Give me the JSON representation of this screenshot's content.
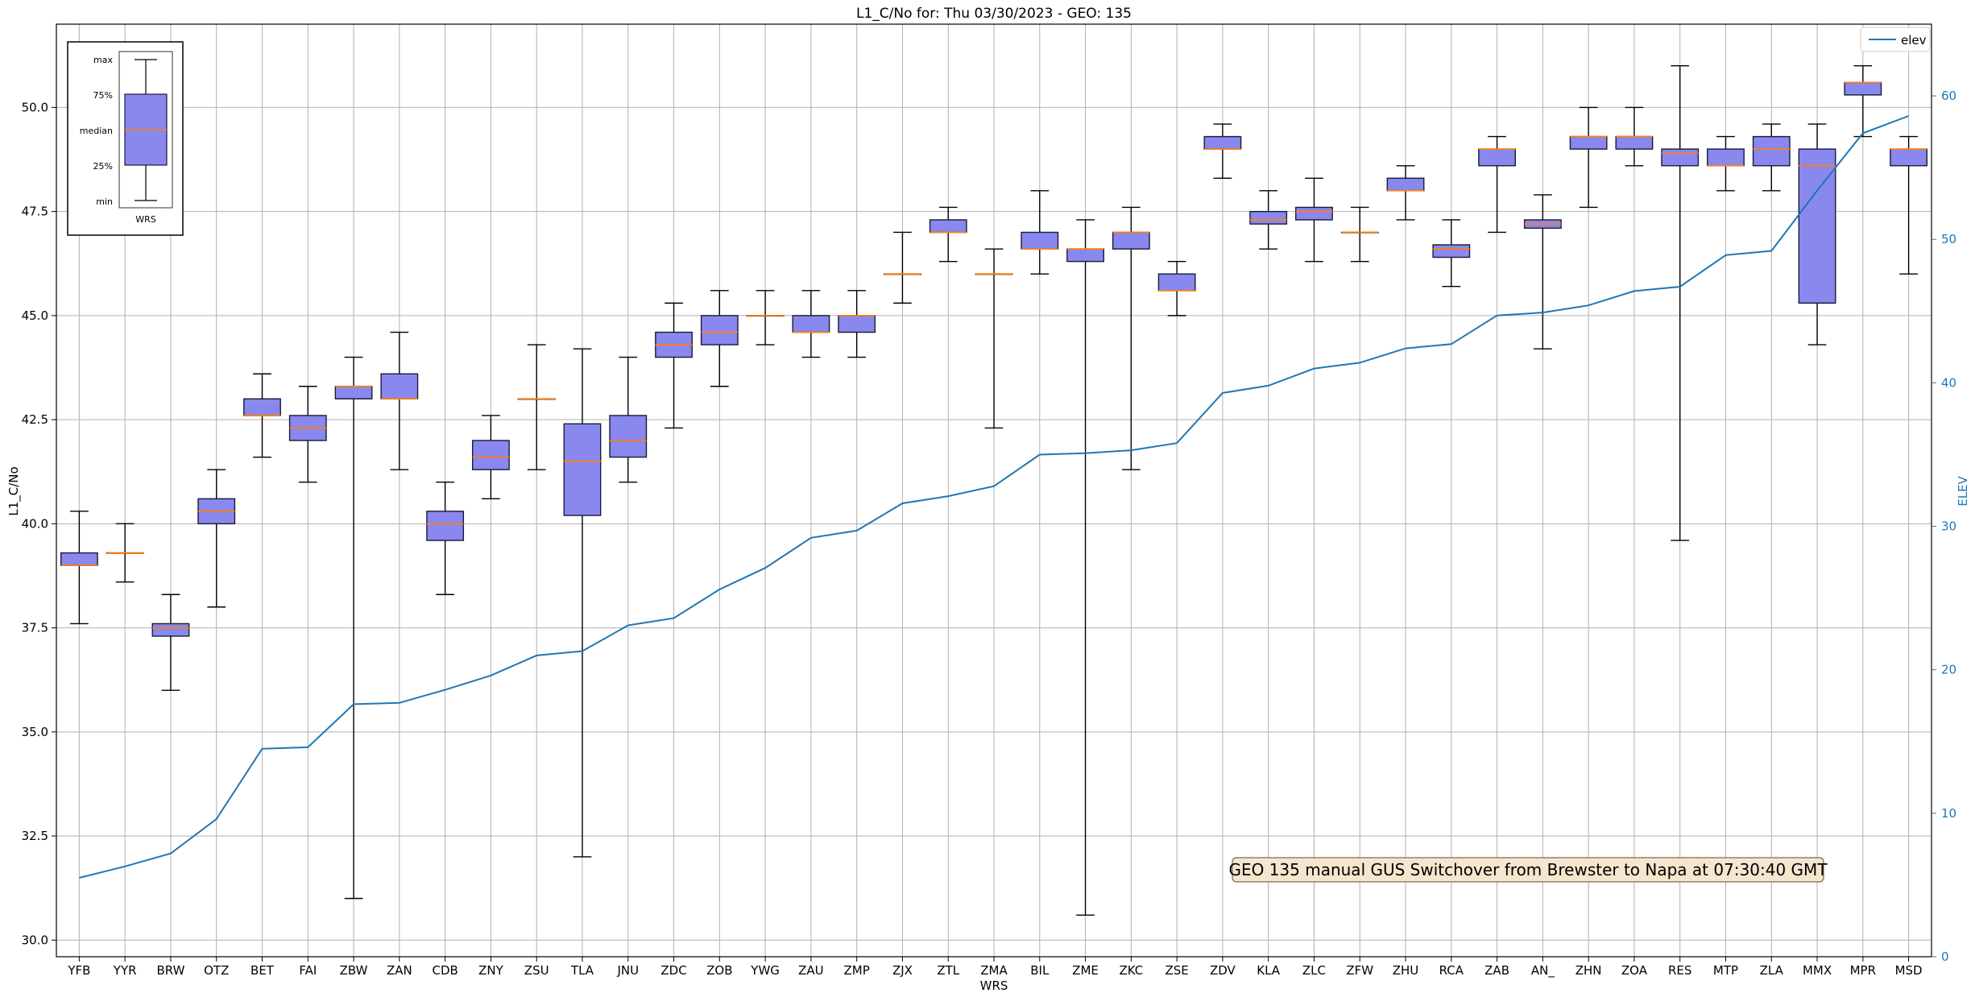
{
  "chart_data": {
    "type": "box",
    "title": "L1_C/No for: Thu 03/30/2023 - GEO: 135",
    "xlabel": "WRS",
    "ylabel": "L1_C/No",
    "y2label": "ELEV",
    "ylim": [
      29.6,
      52.0
    ],
    "y2lim": [
      0,
      65
    ],
    "yticks": [
      "30.0",
      "32.5",
      "35.0",
      "37.5",
      "40.0",
      "42.5",
      "45.0",
      "47.5",
      "50.0"
    ],
    "y2ticks": [
      "0",
      "10",
      "20",
      "30",
      "40",
      "50",
      "60"
    ],
    "grid": true,
    "legend": {
      "position": "top-right",
      "entries": [
        "elev"
      ]
    },
    "annotation": "GEO 135 manual GUS Switchover from Brewster to Napa at 07:30:40 GMT",
    "colors": {
      "box_fill": "#8888ee",
      "box_edge": "#1a1a3a",
      "median": "#ff7f0e",
      "elev_line": "#1f77b4",
      "whisker": "#000000",
      "grid": "#b0b0b0"
    },
    "categories": [
      "YFB",
      "YYR",
      "BRW",
      "OTZ",
      "BET",
      "FAI",
      "ZBW",
      "ZAN",
      "CDB",
      "ZNY",
      "ZSU",
      "TLA",
      "JNU",
      "ZDC",
      "ZOB",
      "YWG",
      "ZAU",
      "ZMP",
      "ZJX",
      "ZTL",
      "ZMA",
      "BIL",
      "ZME",
      "ZKC",
      "ZSE",
      "ZDV",
      "KLA",
      "ZLC",
      "ZFW",
      "ZHU",
      "RCA",
      "ZAB",
      "AN_",
      "ZHN",
      "ZOA",
      "RES",
      "MTP",
      "ZLA",
      "MMX",
      "MPR",
      "MSD"
    ],
    "boxes": [
      {
        "min": 37.6,
        "q1": 39.0,
        "median": 39.0,
        "q3": 39.3,
        "max": 40.3
      },
      {
        "min": 38.6,
        "q1": 39.3,
        "median": 39.3,
        "q3": 39.3,
        "max": 40.0
      },
      {
        "min": 36.0,
        "q1": 37.3,
        "median": 37.5,
        "q3": 37.6,
        "max": 38.3
      },
      {
        "min": 38.0,
        "q1": 40.0,
        "median": 40.3,
        "q3": 40.6,
        "max": 41.3
      },
      {
        "min": 41.6,
        "q1": 42.6,
        "median": 42.6,
        "q3": 43.0,
        "max": 43.6
      },
      {
        "min": 41.0,
        "q1": 42.0,
        "median": 42.3,
        "q3": 42.6,
        "max": 43.3
      },
      {
        "min": 31.0,
        "q1": 43.0,
        "median": 43.3,
        "q3": 43.3,
        "max": 44.0
      },
      {
        "min": 41.3,
        "q1": 43.0,
        "median": 43.0,
        "q3": 43.6,
        "max": 44.6
      },
      {
        "min": 38.3,
        "q1": 39.6,
        "median": 40.0,
        "q3": 40.3,
        "max": 41.0
      },
      {
        "min": 40.6,
        "q1": 41.3,
        "median": 41.6,
        "q3": 42.0,
        "max": 42.6
      },
      {
        "min": 41.3,
        "q1": 43.0,
        "median": 43.0,
        "q3": 43.0,
        "max": 44.3
      },
      {
        "min": 32.0,
        "q1": 40.2,
        "median": 41.5,
        "q3": 42.4,
        "max": 44.2
      },
      {
        "min": 41.0,
        "q1": 41.6,
        "median": 42.0,
        "q3": 42.6,
        "max": 44.0
      },
      {
        "min": 42.3,
        "q1": 44.0,
        "median": 44.3,
        "q3": 44.6,
        "max": 45.3
      },
      {
        "min": 43.3,
        "q1": 44.3,
        "median": 44.6,
        "q3": 45.0,
        "max": 45.6
      },
      {
        "min": 44.3,
        "q1": 45.0,
        "median": 45.0,
        "q3": 45.0,
        "max": 45.6
      },
      {
        "min": 44.0,
        "q1": 44.6,
        "median": 44.6,
        "q3": 45.0,
        "max": 45.6
      },
      {
        "min": 44.0,
        "q1": 44.6,
        "median": 45.0,
        "q3": 45.0,
        "max": 45.6
      },
      {
        "min": 45.3,
        "q1": 46.0,
        "median": 46.0,
        "q3": 46.0,
        "max": 47.0
      },
      {
        "min": 46.3,
        "q1": 47.0,
        "median": 47.0,
        "q3": 47.3,
        "max": 47.6
      },
      {
        "min": 42.3,
        "q1": 46.0,
        "median": 46.0,
        "q3": 46.0,
        "max": 46.6
      },
      {
        "min": 46.0,
        "q1": 46.6,
        "median": 46.6,
        "q3": 47.0,
        "max": 48.0
      },
      {
        "min": 30.6,
        "q1": 46.3,
        "median": 46.6,
        "q3": 46.6,
        "max": 47.3
      },
      {
        "min": 41.3,
        "q1": 46.6,
        "median": 47.0,
        "q3": 47.0,
        "max": 47.6
      },
      {
        "min": 45.0,
        "q1": 45.6,
        "median": 45.6,
        "q3": 46.0,
        "max": 46.3
      },
      {
        "min": 48.3,
        "q1": 49.0,
        "median": 49.0,
        "q3": 49.3,
        "max": 49.6
      },
      {
        "min": 46.6,
        "q1": 47.2,
        "median": 47.3,
        "q3": 47.5,
        "max": 48.0
      },
      {
        "min": 46.3,
        "q1": 47.3,
        "median": 47.5,
        "q3": 47.6,
        "max": 48.3
      },
      {
        "min": 46.3,
        "q1": 47.0,
        "median": 47.0,
        "q3": 47.0,
        "max": 47.6
      },
      {
        "min": 47.3,
        "q1": 48.0,
        "median": 48.0,
        "q3": 48.3,
        "max": 48.6
      },
      {
        "min": 45.7,
        "q1": 46.4,
        "median": 46.6,
        "q3": 46.7,
        "max": 47.3
      },
      {
        "min": 47.0,
        "q1": 48.6,
        "median": 49.0,
        "q3": 49.0,
        "max": 49.3
      },
      {
        "min": 44.2,
        "q1": 47.1,
        "median": 47.2,
        "q3": 47.3,
        "max": 47.9
      },
      {
        "min": 47.6,
        "q1": 49.0,
        "median": 49.3,
        "q3": 49.3,
        "max": 50.0
      },
      {
        "min": 48.6,
        "q1": 49.0,
        "median": 49.3,
        "q3": 49.3,
        "max": 50.0
      },
      {
        "min": 39.6,
        "q1": 48.6,
        "median": 48.9,
        "q3": 49.0,
        "max": 51.0
      },
      {
        "min": 48.0,
        "q1": 48.6,
        "median": 48.6,
        "q3": 49.0,
        "max": 49.3
      },
      {
        "min": 48.0,
        "q1": 48.6,
        "median": 49.0,
        "q3": 49.3,
        "max": 49.6
      },
      {
        "min": 44.3,
        "q1": 45.3,
        "median": 48.6,
        "q3": 49.0,
        "max": 49.6
      },
      {
        "min": 49.3,
        "q1": 50.3,
        "median": 50.6,
        "q3": 50.6,
        "max": 51.0
      },
      {
        "min": 46.0,
        "q1": 48.6,
        "median": 49.0,
        "q3": 49.0,
        "max": 49.3
      }
    ],
    "elev": [
      5.5,
      6.3,
      7.2,
      9.6,
      14.5,
      14.6,
      17.6,
      17.7,
      18.6,
      19.6,
      21.0,
      21.3,
      23.1,
      23.6,
      25.6,
      27.1,
      29.2,
      29.7,
      31.6,
      32.1,
      32.8,
      35.0,
      35.1,
      35.3,
      35.8,
      39.3,
      39.8,
      41.0,
      41.4,
      42.4,
      42.7,
      44.7,
      44.9,
      45.4,
      46.4,
      46.7,
      48.9,
      49.2,
      53.4,
      57.4,
      58.6
    ]
  },
  "inset": {
    "labels": [
      "max",
      "75%",
      "median",
      "25%",
      "min"
    ],
    "category": "WRS"
  }
}
